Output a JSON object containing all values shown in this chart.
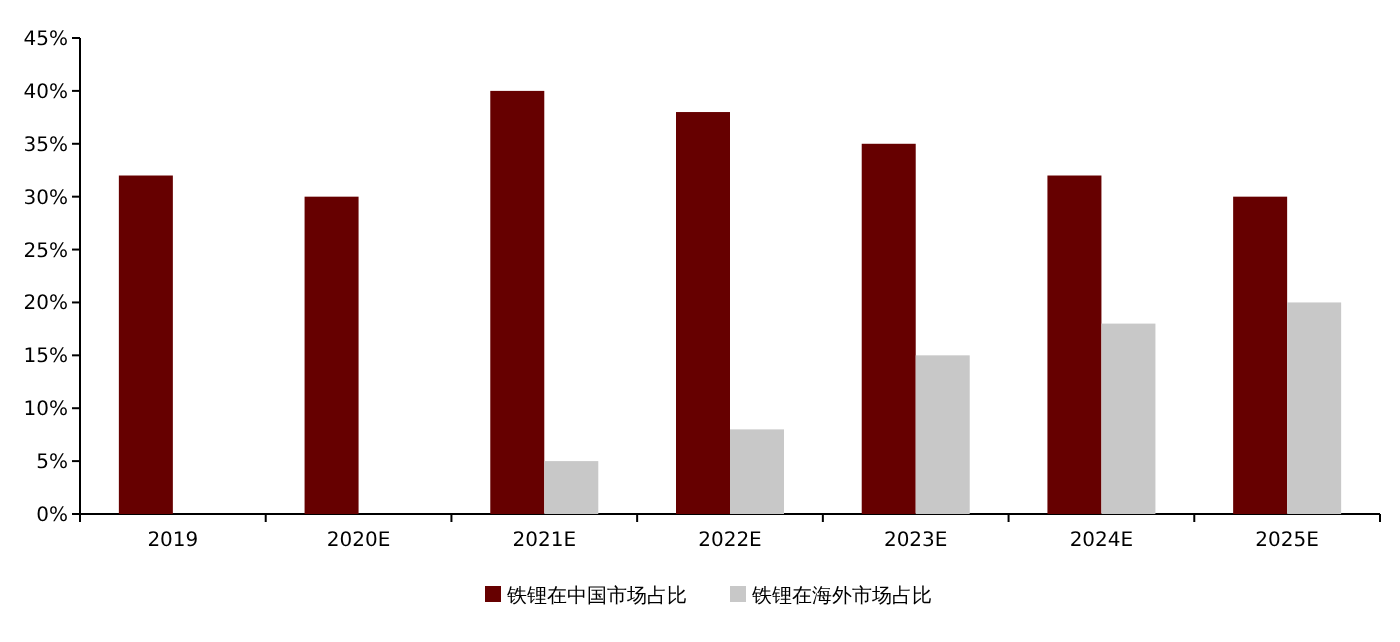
{
  "chart_data": {
    "type": "bar",
    "categories": [
      "2019",
      "2020E",
      "2021E",
      "2022E",
      "2023E",
      "2024E",
      "2025E"
    ],
    "series": [
      {
        "name": "铁锂在中国市场占比",
        "color": "#660000",
        "values": [
          32,
          30,
          40,
          38,
          35,
          32,
          30
        ]
      },
      {
        "name": "铁锂在海外市场占比",
        "color": "#c8c8c8",
        "values": [
          null,
          null,
          5,
          8,
          15,
          18,
          20
        ]
      }
    ],
    "ylim": [
      0,
      45
    ],
    "yticks": [
      {
        "value": 0,
        "label": "0%"
      },
      {
        "value": 5,
        "label": "5%"
      },
      {
        "value": 10,
        "label": "10%"
      },
      {
        "value": 15,
        "label": "15%"
      },
      {
        "value": 20,
        "label": "20%"
      },
      {
        "value": 25,
        "label": "25%"
      },
      {
        "value": 30,
        "label": "30%"
      },
      {
        "value": 35,
        "label": "35%"
      },
      {
        "value": 40,
        "label": "40%"
      },
      {
        "value": 45,
        "label": "45%"
      }
    ],
    "legend": "bottom"
  }
}
